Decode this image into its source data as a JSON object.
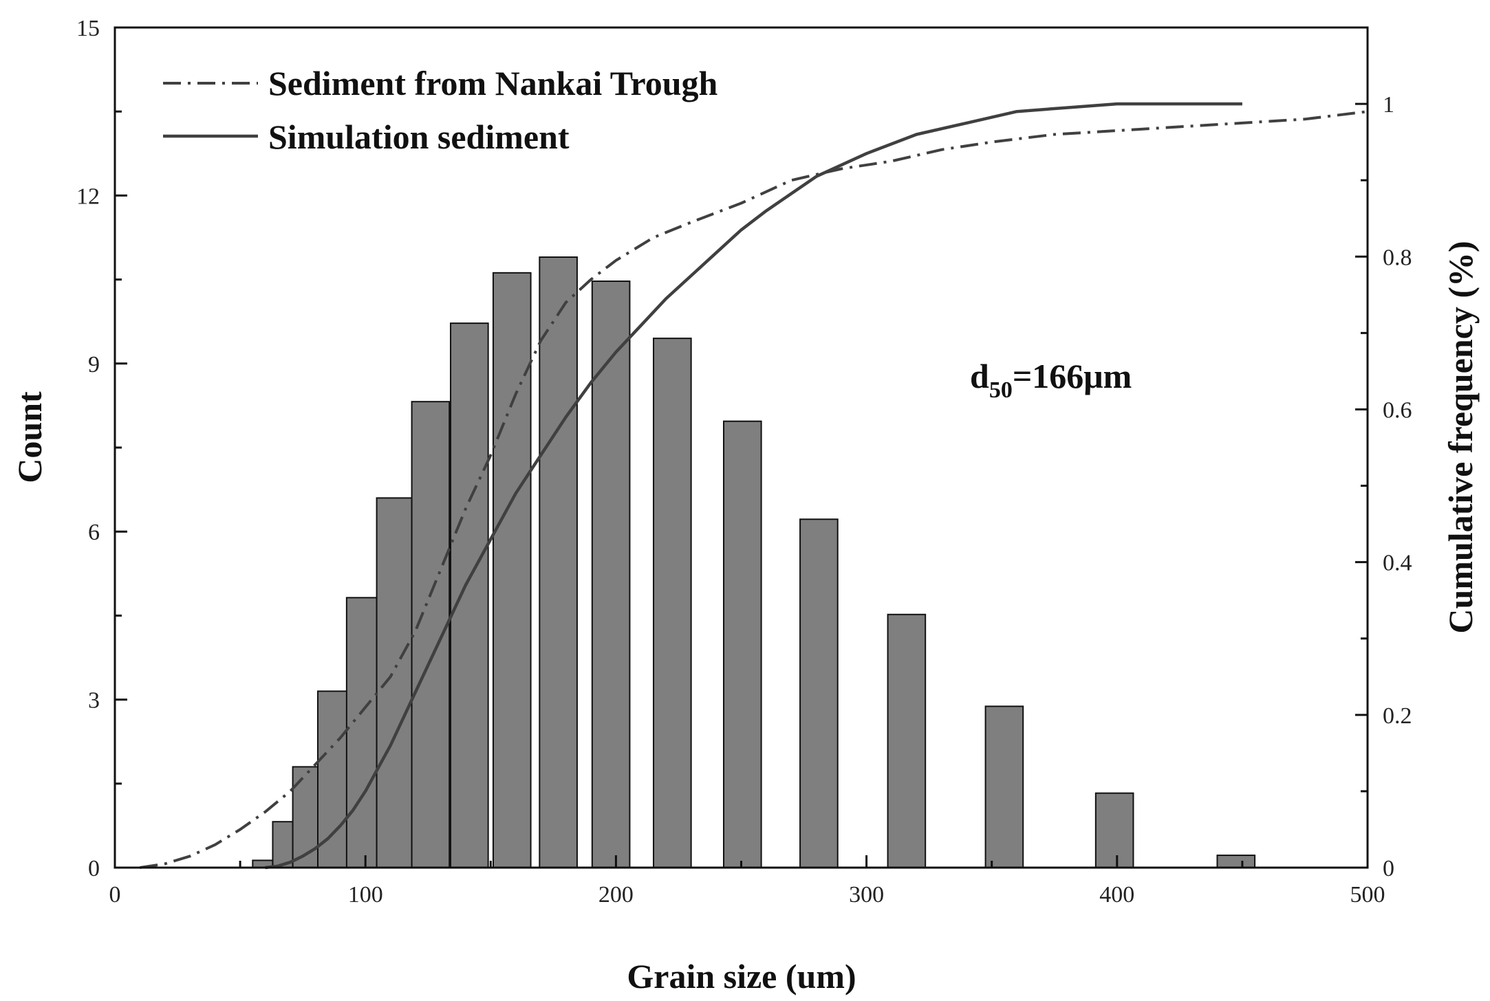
{
  "chart_data": {
    "type": "bar",
    "title": "",
    "xlabel": "Grain size (um)",
    "ylabel": "Count",
    "y2label": "Cumulative frequency (%)",
    "xlim": [
      0,
      500
    ],
    "ylim": [
      0,
      15
    ],
    "y2lim": [
      0,
      1.1
    ],
    "x_ticks": [
      0,
      100,
      200,
      300,
      400,
      500
    ],
    "x_tick_labels": [
      "0",
      "100",
      "200",
      "300",
      "400",
      "500"
    ],
    "y_ticks": [
      0,
      3,
      6,
      9,
      12,
      15
    ],
    "y_tick_labels": [
      "0",
      "3",
      "6",
      "9",
      "12",
      "15"
    ],
    "y2_ticks": [
      0,
      0.2,
      0.4,
      0.6,
      0.8,
      1
    ],
    "y2_tick_labels": [
      "0",
      "0.2",
      "0.4",
      "0.6",
      "0.8",
      "1"
    ],
    "grid": false,
    "bar_color": "#7f7f7f",
    "bars": [
      {
        "x": 59,
        "width": 8,
        "value": 0.13
      },
      {
        "x": 67,
        "width": 8,
        "value": 0.82
      },
      {
        "x": 76,
        "width": 10,
        "value": 1.8
      },
      {
        "x": 87,
        "width": 12,
        "value": 3.15
      },
      {
        "x": 98.5,
        "width": 12,
        "value": 4.82
      },
      {
        "x": 111.5,
        "width": 14,
        "value": 6.6
      },
      {
        "x": 126,
        "width": 15,
        "value": 8.32
      },
      {
        "x": 141.5,
        "width": 15,
        "value": 9.72
      },
      {
        "x": 158.5,
        "width": 15,
        "value": 10.62
      },
      {
        "x": 177,
        "width": 15,
        "value": 10.9
      },
      {
        "x": 198,
        "width": 15,
        "value": 10.47
      },
      {
        "x": 222.5,
        "width": 15,
        "value": 9.45
      },
      {
        "x": 250.5,
        "width": 15,
        "value": 7.97
      },
      {
        "x": 281,
        "width": 15,
        "value": 6.22
      },
      {
        "x": 316,
        "width": 15,
        "value": 4.52
      },
      {
        "x": 355,
        "width": 15,
        "value": 2.88
      },
      {
        "x": 399,
        "width": 15,
        "value": 1.33
      },
      {
        "x": 447.5,
        "width": 15,
        "value": 0.22
      }
    ],
    "series": [
      {
        "name": "Sediment from Nankai Trough",
        "axis": "y2",
        "style": "dashdot",
        "x": [
          10,
          20,
          30,
          40,
          50,
          60,
          70,
          80,
          90,
          100,
          110,
          120,
          130,
          140,
          150,
          160,
          170,
          180,
          190,
          200,
          215,
          230,
          250,
          270,
          290,
          310,
          330,
          350,
          375,
          400,
          425,
          450,
          475,
          500
        ],
        "y": [
          0.0,
          0.005,
          0.015,
          0.03,
          0.05,
          0.073,
          0.1,
          0.135,
          0.17,
          0.21,
          0.25,
          0.31,
          0.39,
          0.47,
          0.54,
          0.62,
          0.69,
          0.74,
          0.77,
          0.795,
          0.825,
          0.845,
          0.87,
          0.9,
          0.915,
          0.925,
          0.94,
          0.95,
          0.96,
          0.965,
          0.97,
          0.975,
          0.98,
          0.99
        ]
      },
      {
        "name": "Simulation sediment",
        "axis": "y2",
        "style": "solid",
        "x": [
          60,
          65,
          70,
          75,
          80,
          85,
          90,
          95,
          100,
          110,
          120,
          130,
          140,
          150,
          160,
          170,
          180,
          190,
          200,
          210,
          220,
          230,
          240,
          250,
          260,
          280,
          300,
          320,
          340,
          360,
          380,
          400,
          425,
          450
        ],
        "y": [
          0.0,
          0.002,
          0.007,
          0.015,
          0.025,
          0.038,
          0.055,
          0.075,
          0.1,
          0.16,
          0.23,
          0.3,
          0.37,
          0.43,
          0.49,
          0.54,
          0.59,
          0.635,
          0.675,
          0.71,
          0.745,
          0.775,
          0.805,
          0.835,
          0.86,
          0.905,
          0.935,
          0.96,
          0.975,
          0.99,
          0.995,
          1.0,
          1.0,
          1.0
        ]
      }
    ],
    "legend": {
      "placement": "top-left",
      "entries": [
        "Sediment from Nankai Trough",
        "Simulation sediment"
      ]
    },
    "annotation": {
      "main": "d",
      "subscript": "50",
      "rest": "=166μm"
    }
  }
}
